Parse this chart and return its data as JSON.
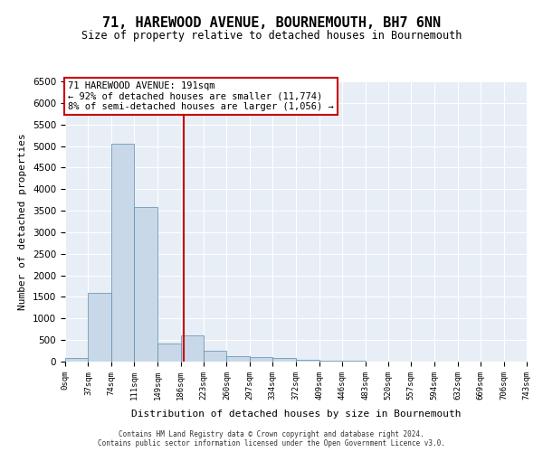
{
  "title": "71, HAREWOOD AVENUE, BOURNEMOUTH, BH7 6NN",
  "subtitle": "Size of property relative to detached houses in Bournemouth",
  "xlabel": "Distribution of detached houses by size in Bournemouth",
  "ylabel": "Number of detached properties",
  "bar_color": "#c8d8e8",
  "bar_edge_color": "#5a8ab0",
  "background_color": "#e8eef5",
  "vline_x": 191,
  "vline_color": "#cc0000",
  "annotation_lines": [
    "71 HAREWOOD AVENUE: 191sqm",
    "← 92% of detached houses are smaller (11,774)",
    "8% of semi-detached houses are larger (1,056) →"
  ],
  "annotation_box_color": "#cc0000",
  "bin_edges": [
    0,
    37,
    74,
    111,
    149,
    186,
    223,
    260,
    297,
    334,
    372,
    409,
    446,
    483,
    520,
    557,
    594,
    632,
    669,
    706,
    743
  ],
  "bar_heights": [
    75,
    1600,
    5050,
    3575,
    410,
    600,
    260,
    130,
    110,
    85,
    50,
    25,
    15,
    10,
    8,
    5,
    4,
    3,
    2,
    2
  ],
  "ylim": [
    0,
    6500
  ],
  "yticks": [
    0,
    500,
    1000,
    1500,
    2000,
    2500,
    3000,
    3500,
    4000,
    4500,
    5000,
    5500,
    6000,
    6500
  ],
  "footer_line1": "Contains HM Land Registry data © Crown copyright and database right 2024.",
  "footer_line2": "Contains public sector information licensed under the Open Government Licence v3.0."
}
